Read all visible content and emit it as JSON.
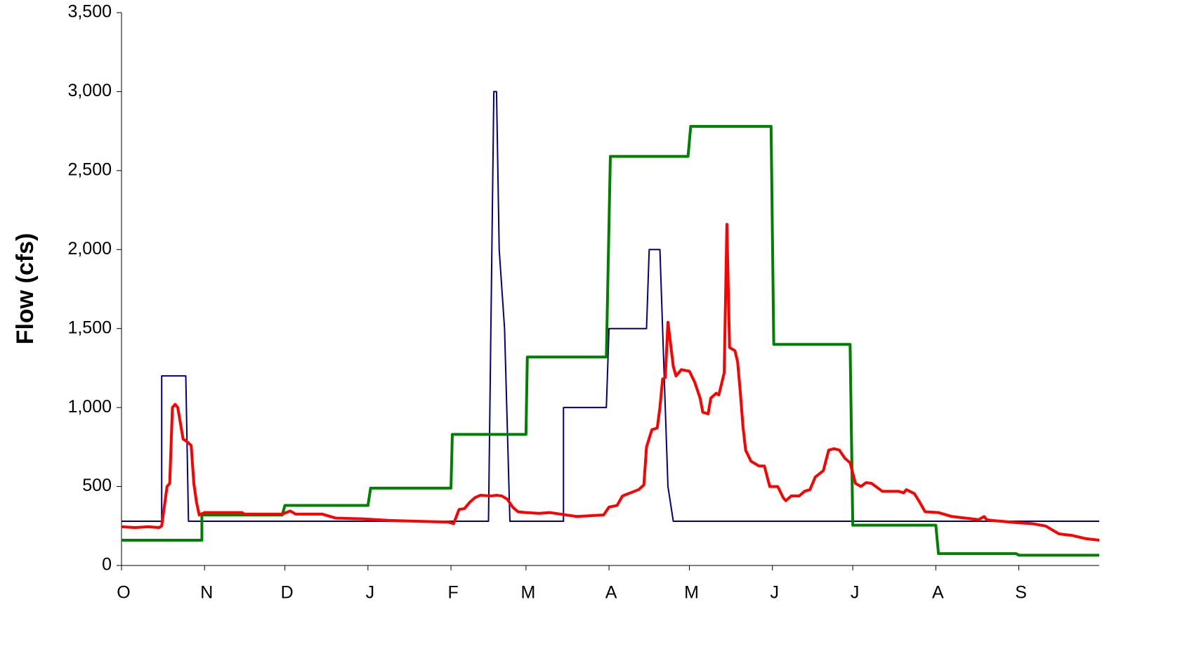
{
  "chart_data": {
    "type": "line",
    "y_label": "Flow (cfs)",
    "xlim": [
      0,
      365
    ],
    "xticks": [
      {
        "value": 0,
        "label": "O"
      },
      {
        "value": 31,
        "label": "N"
      },
      {
        "value": 61,
        "label": "D"
      },
      {
        "value": 92,
        "label": "J"
      },
      {
        "value": 123,
        "label": "F"
      },
      {
        "value": 151,
        "label": "M"
      },
      {
        "value": 182,
        "label": "A"
      },
      {
        "value": 212,
        "label": "M"
      },
      {
        "value": 243,
        "label": "J"
      },
      {
        "value": 273,
        "label": "J"
      },
      {
        "value": 304,
        "label": "A"
      },
      {
        "value": 335,
        "label": "S"
      }
    ],
    "ylim": [
      0,
      3500
    ],
    "yticks": [
      0,
      500,
      {
        "value": 1000,
        "label": "1,000"
      },
      {
        "value": 1500,
        "label": "1,500"
      },
      {
        "value": 2000,
        "label": "2,000"
      },
      {
        "value": 2500,
        "label": "2,500"
      },
      {
        "value": 3000,
        "label": "3,000"
      },
      {
        "value": 3500,
        "label": "3,500"
      }
    ],
    "grid": false,
    "series": [
      {
        "color": "#000080",
        "width": 2,
        "x": [
          0,
          15,
          15,
          24,
          25,
          137,
          139,
          140,
          141,
          143,
          145,
          165,
          165,
          181,
          182,
          196,
          197,
          201,
          204,
          206,
          365
        ],
        "values": [
          280,
          280,
          1200,
          1200,
          280,
          280,
          3000,
          3000,
          2000,
          1500,
          280,
          280,
          1000,
          1000,
          1500,
          1500,
          2000,
          2000,
          500,
          280,
          280
        ]
      },
      {
        "color": "#008000",
        "width": 4,
        "x": [
          0,
          30,
          30,
          60,
          61,
          92,
          93,
          123,
          123.5,
          151,
          151.5,
          181,
          182.5,
          211.5,
          212.5,
          242.5,
          243.5,
          272,
          273,
          304,
          305,
          334,
          335,
          365
        ],
        "values": [
          160,
          160,
          320,
          320,
          380,
          380,
          490,
          490,
          830,
          830,
          1320,
          1320,
          2590,
          2590,
          2780,
          2780,
          1400,
          1400,
          255,
          255,
          75,
          75,
          65,
          65
        ]
      },
      {
        "color": "#ff0000",
        "width": 4,
        "x": [
          0,
          5,
          10,
          14,
          15,
          17,
          18,
          19,
          20,
          21,
          23,
          24,
          26,
          27,
          28,
          29,
          31,
          45,
          46,
          60,
          63,
          65,
          75,
          80,
          90,
          100,
          110,
          122,
          124,
          126,
          128,
          130,
          132,
          134,
          138,
          140,
          142,
          144,
          146,
          148,
          151,
          156,
          160,
          166,
          170,
          175,
          180,
          182,
          185,
          187,
          190,
          193,
          195,
          196,
          198,
          200,
          201,
          202,
          203,
          204,
          206,
          207,
          209,
          212,
          214,
          216,
          217,
          219,
          220,
          222,
          223,
          225,
          226,
          227,
          229,
          230,
          231,
          232,
          233,
          235,
          238,
          240,
          242,
          245,
          247,
          248,
          250,
          253,
          255,
          257,
          259,
          262,
          264,
          266,
          268,
          270,
          272,
          274,
          276,
          278,
          280,
          284,
          290,
          292,
          293,
          296,
          298,
          300,
          305,
          310,
          315,
          320,
          322,
          323,
          325,
          335,
          340,
          345,
          350,
          355,
          360,
          365
        ],
        "values": [
          245,
          240,
          245,
          240,
          250,
          500,
          520,
          1000,
          1020,
          1000,
          800,
          790,
          760,
          520,
          400,
          320,
          335,
          335,
          325,
          325,
          345,
          325,
          325,
          300,
          295,
          285,
          280,
          275,
          265,
          355,
          360,
          400,
          430,
          445,
          440,
          445,
          440,
          420,
          370,
          340,
          335,
          330,
          335,
          320,
          310,
          315,
          320,
          370,
          380,
          440,
          460,
          480,
          510,
          750,
          860,
          870,
          1000,
          1180,
          1190,
          1540,
          1260,
          1200,
          1240,
          1230,
          1160,
          1060,
          970,
          960,
          1060,
          1090,
          1080,
          1220,
          2160,
          1380,
          1360,
          1290,
          1100,
          880,
          730,
          660,
          630,
          630,
          500,
          500,
          430,
          410,
          440,
          440,
          470,
          480,
          560,
          600,
          730,
          740,
          730,
          680,
          650,
          520,
          500,
          525,
          520,
          470,
          470,
          460,
          480,
          455,
          400,
          340,
          335,
          310,
          300,
          290,
          310,
          290,
          285,
          270,
          265,
          250,
          200,
          190,
          170,
          160
        ]
      }
    ]
  }
}
